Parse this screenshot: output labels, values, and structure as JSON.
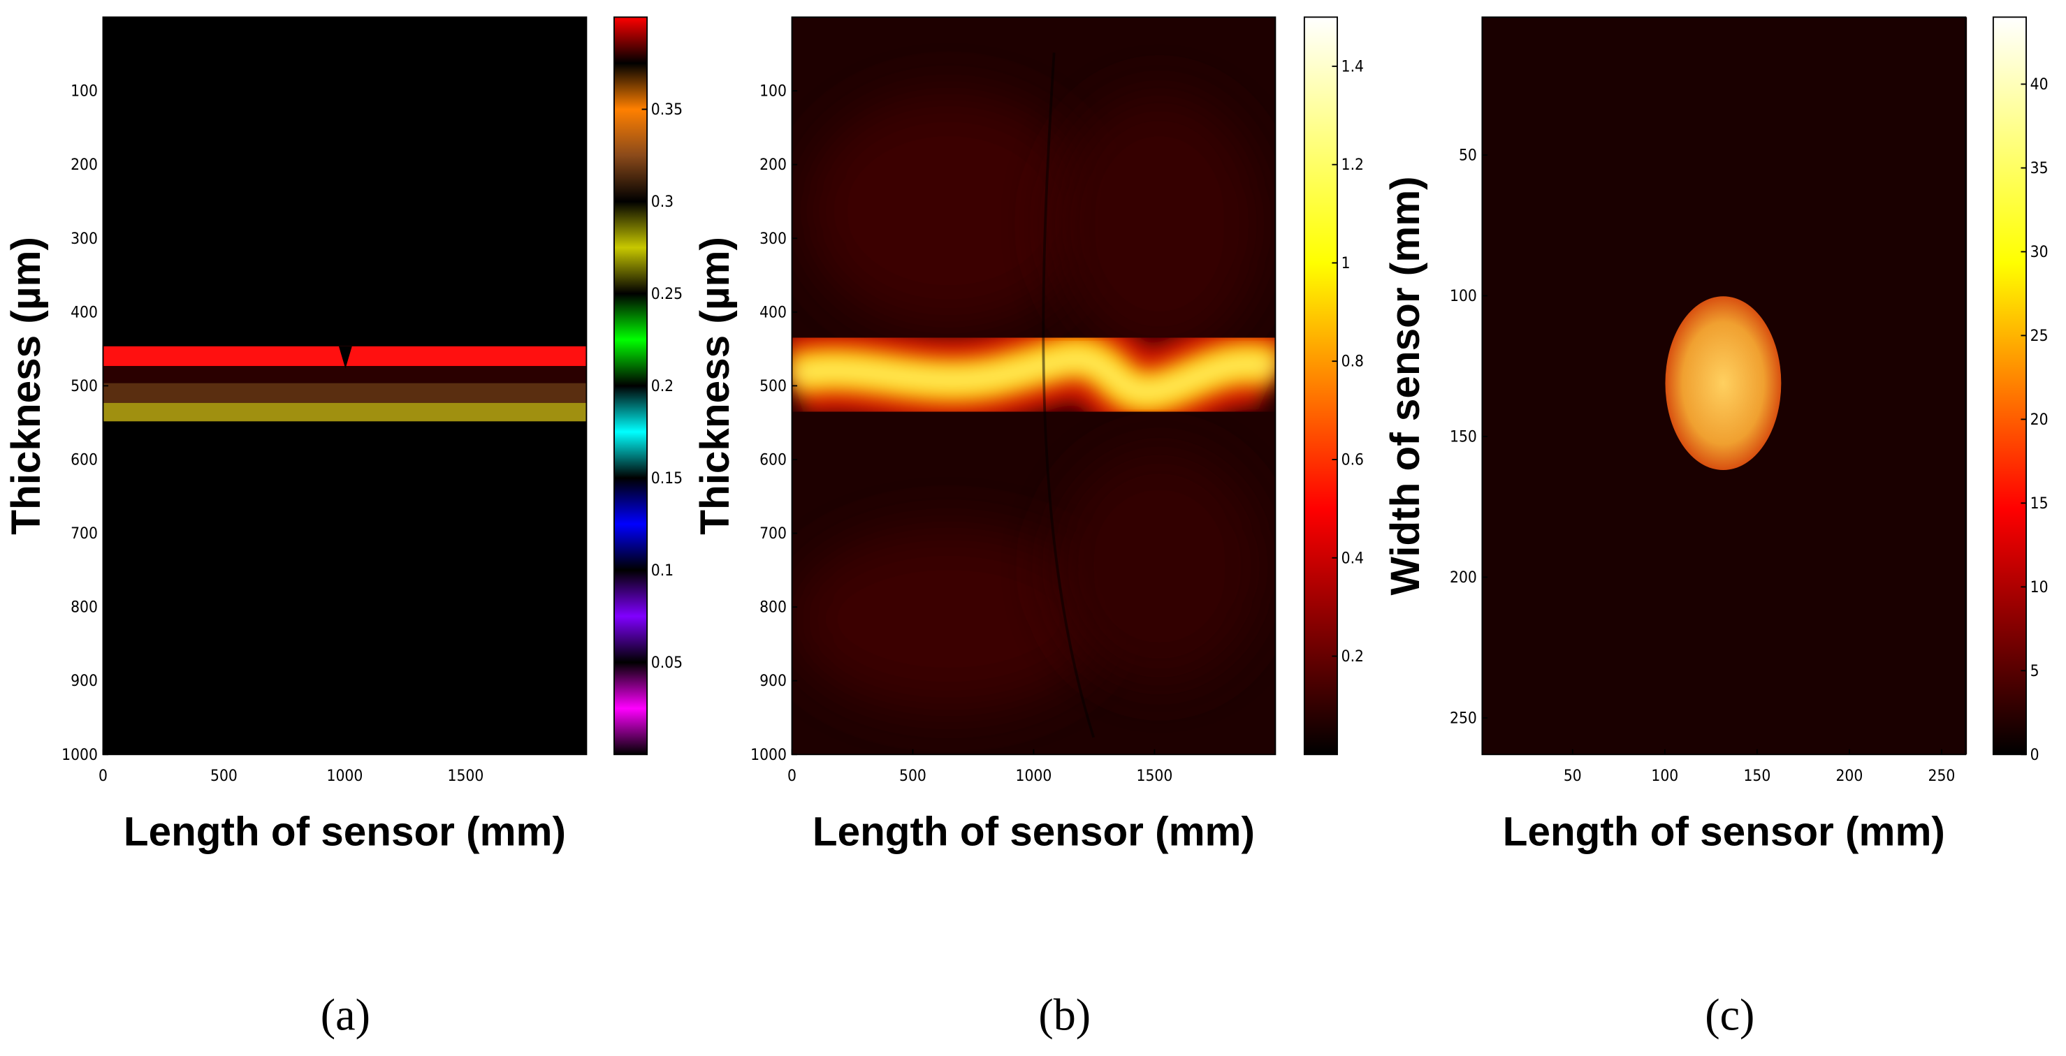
{
  "chart_data": [
    {
      "type": "heatmap",
      "caption": "(a)",
      "xlabel": "Length of sensor (mm)",
      "ylabel": "Thickness (µm)",
      "xlim": [
        0,
        2000
      ],
      "xticks": [
        0,
        500,
        1000,
        1500
      ],
      "ylim": [
        0,
        1000
      ],
      "y_inverted": true,
      "yticks": [
        100,
        200,
        300,
        400,
        500,
        600,
        700,
        800,
        900,
        1000
      ],
      "colorbar": {
        "clim": [
          0,
          0.4
        ],
        "ticks": [
          0.05,
          0.1,
          0.15,
          0.2,
          0.25,
          0.3,
          0.35
        ],
        "colormap": [
          "#000000",
          "#ff00ff",
          "#000000",
          "#8000ff",
          "#000000",
          "#0000ff",
          "#000000",
          "#00ffff",
          "#000000",
          "#00ff00",
          "#000000",
          "#c8c800",
          "#000000",
          "#8b4a1a",
          "#ff8000",
          "#000000",
          "#ff0000"
        ]
      }
    },
    {
      "type": "heatmap",
      "caption": "(b)",
      "xlabel": "Length of sensor (mm)",
      "ylabel": "Thickness (µm)",
      "xlim": [
        0,
        2000
      ],
      "xticks": [
        0,
        500,
        1000,
        1500
      ],
      "ylim": [
        0,
        1000
      ],
      "y_inverted": true,
      "yticks": [
        100,
        200,
        300,
        400,
        500,
        600,
        700,
        800,
        900,
        1000
      ],
      "colorbar": {
        "clim": [
          0,
          1.5
        ],
        "ticks": [
          0.2,
          0.4,
          0.6,
          0.8,
          1,
          1.2,
          1.4
        ],
        "colormap": [
          "#000000",
          "#ff0000",
          "#ffff00",
          "#ffffff"
        ]
      }
    },
    {
      "type": "heatmap",
      "caption": "(c)",
      "xlabel": "Length of sensor (mm)",
      "ylabel": "Width of sensor (mm)",
      "xlim": [
        1,
        263
      ],
      "xticks": [
        50,
        100,
        150,
        200,
        250
      ],
      "ylim": [
        1,
        263
      ],
      "y_inverted": true,
      "yticks": [
        50,
        100,
        150,
        200,
        250
      ],
      "colorbar": {
        "clim": [
          0,
          44
        ],
        "ticks": [
          0,
          5,
          10,
          15,
          20,
          25,
          30,
          35,
          40
        ],
        "colormap": [
          "#000000",
          "#ff0000",
          "#ffff00",
          "#ffffff"
        ]
      }
    }
  ]
}
